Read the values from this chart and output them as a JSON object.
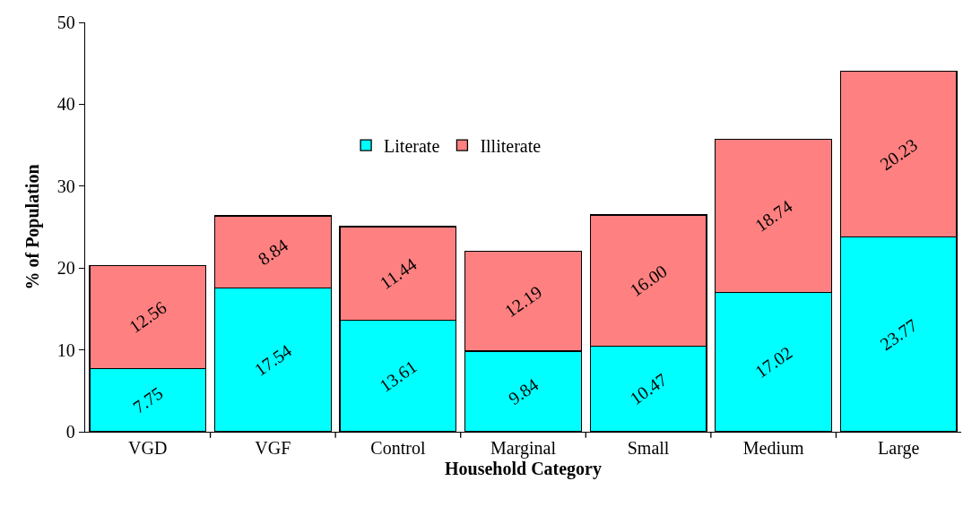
{
  "chart_data": {
    "type": "bar",
    "stacked": true,
    "xlabel": "Household Category",
    "ylabel": "% of Population",
    "categories": [
      "VGD",
      "VGF",
      "Control",
      "Marginal",
      "Small",
      "Medium",
      "Large"
    ],
    "series": [
      {
        "name": "Literate",
        "color": "#00ffff",
        "values": [
          7.75,
          17.54,
          13.61,
          9.84,
          10.47,
          17.02,
          23.77
        ],
        "value_labels": [
          "7.75",
          "17.54",
          "13.61",
          "9.84",
          "10.47",
          "17.02",
          "23.77"
        ]
      },
      {
        "name": "Illiterate",
        "color": "#ff8080",
        "values": [
          12.56,
          8.84,
          11.44,
          12.19,
          16.0,
          18.74,
          20.23
        ],
        "value_labels": [
          "12.56",
          "8.84",
          "11.44",
          "12.19",
          "16.00",
          "18.74",
          "20.23"
        ]
      }
    ],
    "ylim": [
      0,
      50
    ],
    "yticks": [
      0,
      10,
      20,
      30,
      40,
      50
    ],
    "grid": false,
    "legend": "top"
  }
}
